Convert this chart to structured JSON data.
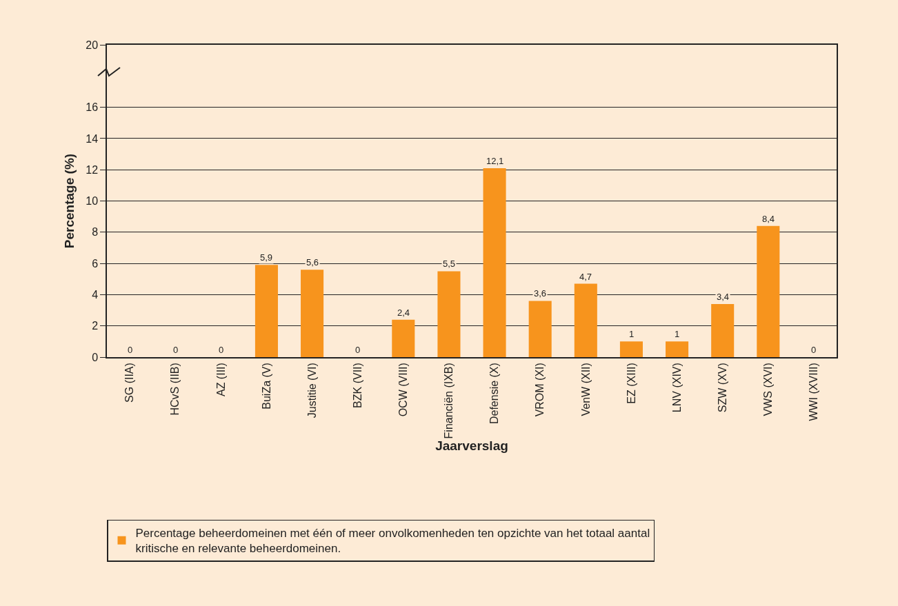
{
  "chart_data": {
    "type": "bar",
    "categories": [
      "SG (IIA)",
      "HCvS (IIB)",
      "AZ (III)",
      "BuiZa (V)",
      "Justitie (VI)",
      "BZK (VII)",
      "OCW (VIII)",
      "Financiën (IXB)",
      "Defensie (X)",
      "VROM (XI)",
      "VenW (XII)",
      "EZ (XIII)",
      "LNV (XIV)",
      "SZW (XV)",
      "VWS (XVI)",
      "WWI (XVIII)"
    ],
    "series": [
      {
        "name": "Percentage beheerdomeinen met één of meer onvolkomenheden ten opzichte van het totaal aantal kritische en relevante beheerdomeinen.",
        "color": "#f7941d",
        "values": [
          0,
          0,
          0,
          5.9,
          5.6,
          0,
          2.4,
          5.5,
          12.1,
          3.6,
          4.7,
          1,
          1,
          3.4,
          8.4,
          0
        ],
        "value_labels": [
          "0",
          "0",
          "0",
          "5,9",
          "5,6",
          "0",
          "2,4",
          "5,5",
          "12,1",
          "3,6",
          "4,7",
          "1",
          "1",
          "3,4",
          "8,4",
          "0"
        ]
      }
    ],
    "xlabel": "Jaarverslag",
    "ylabel": "Percentage (%)",
    "ylim": [
      0,
      20
    ],
    "yticks": [
      0,
      2,
      4,
      6,
      8,
      10,
      12,
      14,
      16,
      20
    ],
    "grid": "y",
    "legend": "bottom"
  }
}
